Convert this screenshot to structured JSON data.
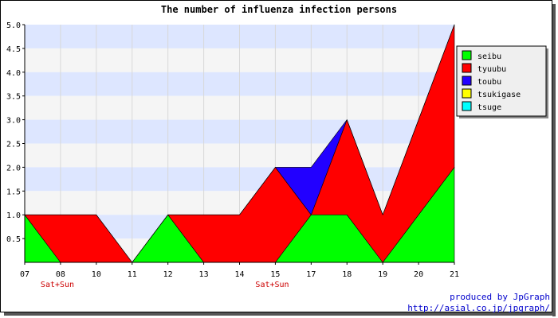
{
  "chart_data": {
    "type": "area",
    "stacked": true,
    "title": "The number of influenza infection persons",
    "categories": [
      "07",
      "08",
      "10",
      "11",
      "12",
      "13",
      "14",
      "15",
      "17",
      "18",
      "19",
      "20",
      "21"
    ],
    "category_notes": [
      "Sat+Sun",
      "",
      "",
      "",
      "",
      "",
      "Sat+Sun",
      "",
      "",
      "",
      "",
      "",
      ""
    ],
    "ylim": [
      0,
      5
    ],
    "yticks": [
      "0.5",
      "1.0",
      "1.5",
      "2.0",
      "2.5",
      "3.0",
      "3.5",
      "4.0",
      "4.5",
      "5.0"
    ],
    "ytick_values": [
      0.5,
      1.0,
      1.5,
      2.0,
      2.5,
      3.0,
      3.5,
      4.0,
      4.5,
      5.0
    ],
    "series": [
      {
        "name": "seibu",
        "color": "#00ff00",
        "values": [
          1,
          0,
          0,
          0,
          1,
          0,
          0,
          0,
          1,
          1,
          0,
          1,
          2
        ]
      },
      {
        "name": "tyuubu",
        "color": "#ff0000",
        "values": [
          0,
          1,
          1,
          0,
          0,
          1,
          1,
          2,
          0,
          2,
          1,
          2,
          3
        ]
      },
      {
        "name": "toubu",
        "color": "#2200ff",
        "values": [
          0,
          0,
          0,
          0,
          0,
          0,
          0,
          0,
          1,
          0,
          0,
          0,
          0
        ]
      },
      {
        "name": "tsukigase",
        "color": "#ffff00",
        "values": [
          0,
          0,
          0,
          0,
          0,
          0,
          0,
          0,
          0,
          0,
          0,
          0,
          0
        ]
      },
      {
        "name": "tsuge",
        "color": "#00ffff",
        "values": [
          0,
          0,
          0,
          0,
          0,
          0,
          0,
          0,
          0,
          0,
          0,
          0,
          0
        ]
      }
    ],
    "grid": true,
    "band_colors": [
      "#dde6ff",
      "#f5f5f5"
    ],
    "legend_position": "right",
    "note_color": "#cc0000"
  },
  "credits": {
    "line1": "produced by JpGraph",
    "line2": "http://asial.co.jp/jpgraph/"
  }
}
